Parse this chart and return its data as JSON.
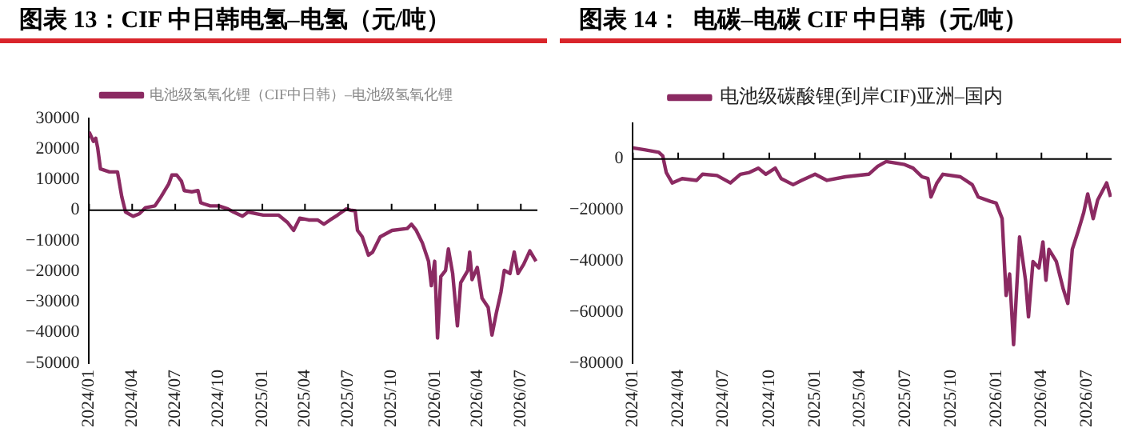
{
  "chart_data": [
    {
      "type": "line",
      "title": "图表 13：CIF 中日韩电氢–电氢（元/吨）",
      "ref_lines": [
        {
          "axis": "y",
          "value": 0,
          "color": "#000000"
        }
      ],
      "legend": "top",
      "grid": false,
      "marker": "none",
      "line_style": "solid",
      "xlim": [
        "2024-01-01",
        "2026-08-05"
      ],
      "ylim": [
        -50000,
        30000
      ],
      "xticks": [
        {
          "value": "2024-01",
          "label": "2024/01"
        },
        {
          "value": "2024-04",
          "label": "2024/04"
        },
        {
          "value": "2024-07",
          "label": "2024/07"
        },
        {
          "value": "2024-10",
          "label": "2024/10"
        },
        {
          "value": "2025-01",
          "label": "2025/01"
        },
        {
          "value": "2025-04",
          "label": "2025/04"
        },
        {
          "value": "2025-07",
          "label": "2025/07"
        },
        {
          "value": "2025-10",
          "label": "2025/10"
        },
        {
          "value": "2026-01",
          "label": "2026/01"
        },
        {
          "value": "2026-04",
          "label": "2026/04"
        },
        {
          "value": "2026-07",
          "label": "2026/07"
        }
      ],
      "yticks": [
        -50000,
        -40000,
        -30000,
        -20000,
        -10000,
        0,
        10000,
        20000,
        30000
      ],
      "x": [
        "2024-01-01",
        "2024-01-10",
        "2024-01-15",
        "2024-01-19",
        "2024-01-25",
        "2024-02-13",
        "2024-03-01",
        "2024-03-10",
        "2024-03-18",
        "2024-04-03",
        "2024-04-16",
        "2024-04-29",
        "2024-05-19",
        "2024-06-01",
        "2024-06-17",
        "2024-06-24",
        "2024-07-04",
        "2024-07-14",
        "2024-07-20",
        "2024-08-05",
        "2024-08-18",
        "2024-08-24",
        "2024-09-13",
        "2024-10-01",
        "2024-10-20",
        "2024-11-01",
        "2024-11-20",
        "2024-12-02",
        "2024-12-21",
        "2025-01-03",
        "2025-02-04",
        "2025-02-23",
        "2025-03-08",
        "2025-03-21",
        "2025-04-09",
        "2025-04-28",
        "2025-05-11",
        "2025-05-24",
        "2025-06-09",
        "2025-06-27",
        "2025-07-06",
        "2025-07-16",
        "2025-07-21",
        "2025-07-31",
        "2025-08-13",
        "2025-08-22",
        "2025-09-07",
        "2025-10-02",
        "2025-11-03",
        "2025-11-12",
        "2025-11-22",
        "2025-12-05",
        "2025-12-18",
        "2025-12-24",
        "2025-12-31",
        "2026-01-06",
        "2026-01-13",
        "2026-01-23",
        "2026-01-29",
        "2026-02-07",
        "2026-02-17",
        "2026-02-24",
        "2026-03-11",
        "2026-03-15",
        "2026-03-20",
        "2026-03-31",
        "2026-04-10",
        "2026-04-23",
        "2026-05-01",
        "2026-05-10",
        "2026-05-20",
        "2026-05-27",
        "2026-06-08",
        "2026-06-17",
        "2026-06-25",
        "2026-07-07",
        "2026-07-20",
        "2026-08-02"
      ],
      "series": [
        {
          "name": "电池级氢氧化锂（CIF中日韩）–电池级氢氧化锂",
          "color": "#8b2a62",
          "values": [
            25600,
            22500,
            23500,
            20500,
            13500,
            12500,
            12500,
            4400,
            -600,
            -2000,
            -1200,
            800,
            1400,
            4400,
            8500,
            11500,
            11500,
            9500,
            6400,
            6000,
            6400,
            2400,
            1400,
            1400,
            400,
            -600,
            -2000,
            -600,
            -1200,
            -1600,
            -1600,
            -4000,
            -6600,
            -2600,
            -3200,
            -3200,
            -4600,
            -3200,
            -1600,
            400,
            0,
            -200,
            -6600,
            -8700,
            -14700,
            -13700,
            -8700,
            -6600,
            -6000,
            -4600,
            -6600,
            -10700,
            -16700,
            -24700,
            -16700,
            -41800,
            -21700,
            -19700,
            -12700,
            -20700,
            -37800,
            -23700,
            -19700,
            -13700,
            -22700,
            -18700,
            -28800,
            -31800,
            -40800,
            -33800,
            -26800,
            -19700,
            -20700,
            -13700,
            -20700,
            -17700,
            -13300,
            -16700
          ]
        }
      ]
    },
    {
      "type": "line",
      "title": "图表 14：  电碳–电碳 CIF 中日韩（元/吨）",
      "ref_lines": [
        {
          "axis": "y",
          "value": 0,
          "color": "#000000"
        }
      ],
      "legend": "top",
      "grid": false,
      "marker": "none",
      "line_style": "solid",
      "xlim": [
        "2024-01-01",
        "2026-08-20"
      ],
      "ylim": [
        -80000,
        14000
      ],
      "xticks": [
        {
          "value": "2024-01",
          "label": "2024/01"
        },
        {
          "value": "2024-04",
          "label": "2024/04"
        },
        {
          "value": "2024-07",
          "label": "2024/07"
        },
        {
          "value": "2024-10",
          "label": "2024/10"
        },
        {
          "value": "2025-01",
          "label": "2025/01"
        },
        {
          "value": "2025-04",
          "label": "2025/04"
        },
        {
          "value": "2025-07",
          "label": "2025/07"
        },
        {
          "value": "2025-10",
          "label": "2025/10"
        },
        {
          "value": "2026-01",
          "label": "2026/01"
        },
        {
          "value": "2026-04",
          "label": "2026/04"
        },
        {
          "value": "2026-07",
          "label": "2026/07"
        }
      ],
      "yticks": [
        -80000,
        -60000,
        -40000,
        -20000,
        0
      ],
      "x": [
        "2024-01-01",
        "2024-01-24",
        "2024-02-22",
        "2024-03-01",
        "2024-03-08",
        "2024-03-20",
        "2024-04-09",
        "2024-05-08",
        "2024-05-20",
        "2024-06-18",
        "2024-07-15",
        "2024-08-04",
        "2024-08-22",
        "2024-09-09",
        "2024-09-24",
        "2024-10-13",
        "2024-10-25",
        "2024-11-18",
        "2024-12-05",
        "2025-01-01",
        "2025-01-25",
        "2025-03-03",
        "2025-04-19",
        "2025-05-07",
        "2025-05-24",
        "2025-06-30",
        "2025-07-17",
        "2025-08-04",
        "2025-08-16",
        "2025-08-22",
        "2025-09-03",
        "2025-09-15",
        "2025-10-20",
        "2025-11-13",
        "2025-11-25",
        "2025-12-19",
        "2025-12-31",
        "2026-01-12",
        "2026-01-20",
        "2026-01-27",
        "2026-02-04",
        "2026-02-16",
        "2026-02-28",
        "2026-03-06",
        "2026-03-15",
        "2026-03-27",
        "2026-04-04",
        "2026-04-10",
        "2026-04-16",
        "2026-05-01",
        "2026-05-15",
        "2026-05-24",
        "2026-06-02",
        "2026-06-14",
        "2026-06-25",
        "2026-07-03",
        "2026-07-14",
        "2026-07-23",
        "2026-08-10",
        "2026-08-18"
      ],
      "series": [
        {
          "name": "电池级碳酸锂(到岸CIF)亚洲–国内",
          "color": "#8b2a62",
          "values": [
            4300,
            3600,
            2600,
            1200,
            -5300,
            -9400,
            -7700,
            -8400,
            -6000,
            -6500,
            -9400,
            -6000,
            -5300,
            -3600,
            -6000,
            -3600,
            -7700,
            -10100,
            -8400,
            -6000,
            -8400,
            -7000,
            -6000,
            -2900,
            -1000,
            -2200,
            -3600,
            -7000,
            -7700,
            -14900,
            -9400,
            -6000,
            -7000,
            -10100,
            -14900,
            -16600,
            -17300,
            -23400,
            -53500,
            -45100,
            -72800,
            -30600,
            -47500,
            -61900,
            -40200,
            -42700,
            -32500,
            -47500,
            -35400,
            -40200,
            -51100,
            -56600,
            -35400,
            -28200,
            -21000,
            -13700,
            -23400,
            -16100,
            -9400,
            -14900
          ]
        }
      ]
    }
  ]
}
